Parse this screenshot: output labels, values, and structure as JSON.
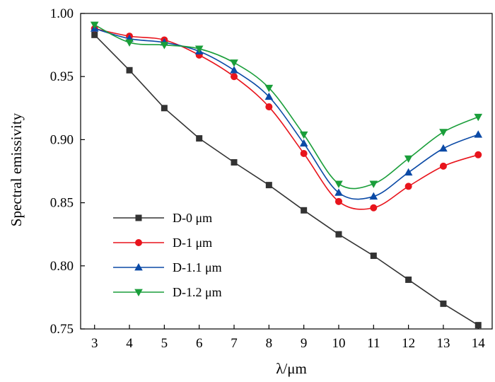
{
  "chart_data": {
    "type": "line",
    "title": "",
    "xlabel": "λ/μm",
    "ylabel": "Spectral emissivity",
    "x": [
      3,
      4,
      5,
      6,
      7,
      8,
      9,
      10,
      11,
      12,
      13,
      14
    ],
    "xlim": [
      2.6,
      14.4
    ],
    "ylim": [
      0.75,
      1.0
    ],
    "x_ticks": [
      "3",
      "4",
      "5",
      "6",
      "7",
      "8",
      "9",
      "10",
      "11",
      "12",
      "13",
      "14"
    ],
    "y_ticks": [
      "0.75",
      "0.80",
      "0.85",
      "0.90",
      "0.95",
      "1.00"
    ],
    "grid": false,
    "legend_position": "lower-left",
    "series": [
      {
        "name": "D-0 μm",
        "color": "#333333",
        "marker": "square",
        "smooth": false,
        "values": [
          0.983,
          0.955,
          0.925,
          0.901,
          0.882,
          0.864,
          0.844,
          0.825,
          0.808,
          0.789,
          0.77,
          0.753
        ]
      },
      {
        "name": "D-1 μm",
        "color": "#e8141c",
        "marker": "circle",
        "smooth": true,
        "values": [
          0.988,
          0.982,
          0.979,
          0.967,
          0.95,
          0.926,
          0.889,
          0.851,
          0.846,
          0.863,
          0.879,
          0.888
        ]
      },
      {
        "name": "D-1.1 μm",
        "color": "#0b4aa6",
        "marker": "triangle-up",
        "smooth": true,
        "values": [
          0.988,
          0.98,
          0.977,
          0.97,
          0.955,
          0.934,
          0.897,
          0.858,
          0.855,
          0.874,
          0.893,
          0.904
        ]
      },
      {
        "name": "D-1.2 μm",
        "color": "#1a9e3a",
        "marker": "triangle-down",
        "smooth": true,
        "values": [
          0.991,
          0.977,
          0.975,
          0.972,
          0.961,
          0.941,
          0.904,
          0.865,
          0.865,
          0.885,
          0.906,
          0.918
        ]
      }
    ]
  }
}
